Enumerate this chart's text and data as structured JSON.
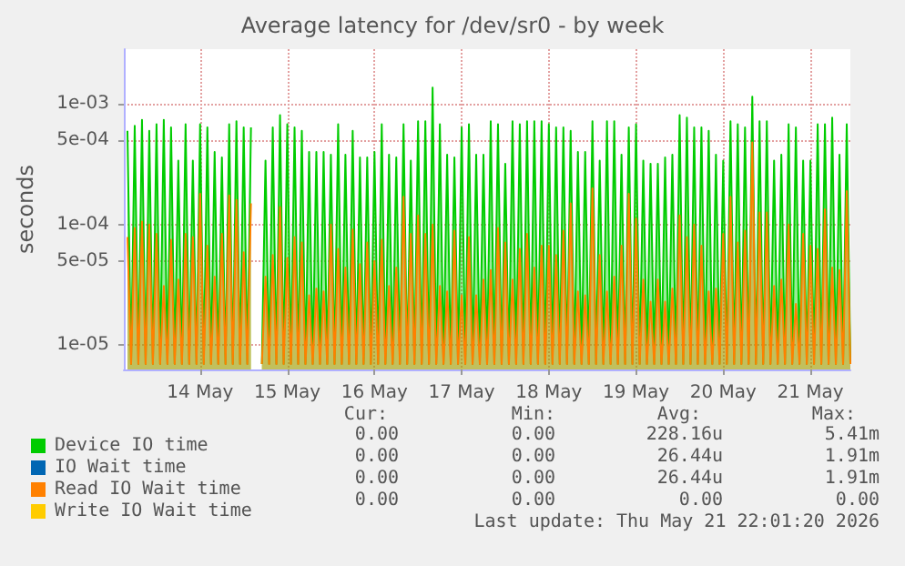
{
  "chart_data": {
    "type": "area",
    "title": "Average latency for /dev/sr0 - by week",
    "ylabel": "seconds",
    "x": [
      "2026-05-13T16:00",
      "2026-05-13T17:00",
      "2026-05-13T18:00",
      "2026-05-13T19:00",
      "2026-05-13T20:00",
      "2026-05-13T21:00",
      "2026-05-13T22:00",
      "2026-05-13T23:00",
      "2026-05-14T00:00",
      "2026-05-14T01:00",
      "2026-05-14T02:00",
      "2026-05-14T03:00",
      "2026-05-14T04:00",
      "2026-05-14T05:00",
      "2026-05-14T06:00",
      "2026-05-14T07:00",
      "2026-05-14T08:00",
      "2026-05-14T09:00",
      "2026-05-14T10:00",
      "2026-05-14T11:00",
      "2026-05-14T12:00",
      "2026-05-14T13:00",
      "2026-05-14T14:00",
      "2026-05-14T15:00",
      "2026-05-14T16:00",
      "2026-05-14T17:00",
      "2026-05-14T18:00",
      "2026-05-14T19:00",
      "2026-05-14T20:00",
      "2026-05-14T21:00",
      "2026-05-14T22:00",
      "2026-05-14T23:00",
      "2026-05-15T00:00",
      "2026-05-15T01:00",
      "2026-05-15T02:00",
      "2026-05-15T03:00",
      "2026-05-15T04:00",
      "2026-05-15T05:00",
      "2026-05-15T06:00",
      "2026-05-15T07:00",
      "2026-05-15T08:00",
      "2026-05-15T09:00",
      "2026-05-15T10:00",
      "2026-05-15T11:00",
      "2026-05-15T12:00",
      "2026-05-15T13:00",
      "2026-05-15T14:00",
      "2026-05-15T15:00",
      "2026-05-15T16:00",
      "2026-05-15T17:00",
      "2026-05-15T18:00",
      "2026-05-15T19:00",
      "2026-05-15T20:00",
      "2026-05-15T21:00",
      "2026-05-15T22:00",
      "2026-05-15T23:00",
      "2026-05-16T00:00",
      "2026-05-16T01:00",
      "2026-05-16T02:00",
      "2026-05-16T03:00",
      "2026-05-16T04:00",
      "2026-05-16T05:00",
      "2026-05-16T06:00",
      "2026-05-16T07:00",
      "2026-05-16T08:00",
      "2026-05-16T09:00",
      "2026-05-16T10:00",
      "2026-05-16T11:00",
      "2026-05-16T12:00",
      "2026-05-16T13:00",
      "2026-05-16T14:00",
      "2026-05-16T15:00",
      "2026-05-16T16:00",
      "2026-05-16T17:00",
      "2026-05-16T18:00",
      "2026-05-16T19:00",
      "2026-05-16T20:00",
      "2026-05-16T21:00",
      "2026-05-16T22:00",
      "2026-05-16T23:00",
      "2026-05-17T00:00",
      "2026-05-17T01:00",
      "2026-05-17T02:00",
      "2026-05-17T03:00",
      "2026-05-17T04:00",
      "2026-05-17T05:00",
      "2026-05-17T06:00",
      "2026-05-17T07:00",
      "2026-05-17T08:00",
      "2026-05-17T09:00",
      "2026-05-17T10:00",
      "2026-05-17T11:00",
      "2026-05-17T12:00",
      "2026-05-17T13:00",
      "2026-05-17T14:00",
      "2026-05-17T15:00",
      "2026-05-17T16:00",
      "2026-05-17T17:00",
      "2026-05-17T18:00",
      "2026-05-17T19:00",
      "2026-05-17T20:00",
      "2026-05-17T21:00",
      "2026-05-17T22:00",
      "2026-05-17T23:00",
      "2026-05-18T00:00",
      "2026-05-18T01:00",
      "2026-05-18T02:00",
      "2026-05-18T03:00",
      "2026-05-18T04:00",
      "2026-05-18T05:00",
      "2026-05-18T06:00",
      "2026-05-18T07:00",
      "2026-05-18T08:00",
      "2026-05-18T09:00",
      "2026-05-18T10:00",
      "2026-05-18T11:00",
      "2026-05-18T12:00",
      "2026-05-18T13:00",
      "2026-05-18T14:00",
      "2026-05-18T15:00",
      "2026-05-18T16:00",
      "2026-05-18T17:00",
      "2026-05-18T18:00",
      "2026-05-18T19:00",
      "2026-05-18T20:00",
      "2026-05-18T21:00",
      "2026-05-18T22:00",
      "2026-05-18T23:00",
      "2026-05-19T00:00",
      "2026-05-19T01:00",
      "2026-05-19T02:00",
      "2026-05-19T03:00",
      "2026-05-19T04:00",
      "2026-05-19T05:00",
      "2026-05-19T06:00",
      "2026-05-19T07:00",
      "2026-05-19T08:00",
      "2026-05-19T09:00",
      "2026-05-19T10:00",
      "2026-05-19T11:00",
      "2026-05-19T12:00",
      "2026-05-19T13:00",
      "2026-05-19T14:00",
      "2026-05-19T15:00",
      "2026-05-19T16:00",
      "2026-05-19T17:00",
      "2026-05-19T18:00",
      "2026-05-19T19:00",
      "2026-05-19T20:00",
      "2026-05-19T21:00",
      "2026-05-19T22:00",
      "2026-05-19T23:00",
      "2026-05-20T00:00",
      "2026-05-20T01:00",
      "2026-05-20T02:00",
      "2026-05-20T03:00",
      "2026-05-20T04:00",
      "2026-05-20T05:00",
      "2026-05-20T06:00",
      "2026-05-20T07:00",
      "2026-05-20T08:00",
      "2026-05-20T09:00",
      "2026-05-20T10:00",
      "2026-05-20T11:00",
      "2026-05-20T12:00",
      "2026-05-20T13:00",
      "2026-05-20T14:00",
      "2026-05-20T15:00",
      "2026-05-20T16:00",
      "2026-05-20T17:00",
      "2026-05-20T18:00",
      "2026-05-20T19:00",
      "2026-05-20T20:00",
      "2026-05-20T21:00",
      "2026-05-20T22:00",
      "2026-05-20T23:00",
      "2026-05-21T00:00",
      "2026-05-21T01:00",
      "2026-05-21T02:00",
      "2026-05-21T03:00",
      "2026-05-21T04:00",
      "2026-05-21T05:00",
      "2026-05-21T06:00",
      "2026-05-21T07:00",
      "2026-05-21T08:00",
      "2026-05-21T09:00",
      "2026-05-21T10:00",
      "2026-05-21T11:00",
      "2026-05-21T12:00",
      "2026-05-21T13:00",
      "2026-05-21T14:00",
      "2026-05-21T15:00",
      "2026-05-21T16:00",
      "2026-05-21T17:00",
      "2026-05-21T18:00",
      "2026-05-21T19:00",
      "2026-05-21T20:00",
      "2026-05-21T21:00",
      "2026-05-21T22:00",
      "2026-05-21T23:00"
    ],
    "series": [
      {
        "name": "Device IO time",
        "color": "#00cc00",
        "values": [
          0.0006,
          7e-06,
          0.00066,
          7e-06,
          0.00074,
          7e-06,
          0.0006,
          7e-06,
          0.00068,
          7e-06,
          0.00074,
          7e-06,
          0.00064,
          7e-06,
          0.00034,
          7e-06,
          0.00068,
          7e-06,
          0.00034,
          7e-06,
          0.00068,
          7e-06,
          0.00064,
          7e-06,
          0.0004,
          7e-06,
          0.00036,
          7e-06,
          0.00068,
          7e-06,
          0.00072,
          7e-06,
          0.00064,
          7e-06,
          0.00064,
          null,
          null,
          7e-06,
          0.00034,
          7e-06,
          0.00064,
          7e-06,
          0.00081,
          7e-06,
          0.00068,
          7e-06,
          0.00064,
          7e-06,
          0.0006,
          7e-06,
          0.0004,
          7e-06,
          0.0004,
          7e-06,
          0.0004,
          7e-06,
          0.00038,
          7e-06,
          0.00068,
          7e-06,
          0.00038,
          7e-06,
          0.0006,
          7e-06,
          0.00036,
          7e-06,
          0.00036,
          7e-06,
          0.0004,
          7e-06,
          0.00068,
          7e-06,
          0.00038,
          7e-06,
          0.00036,
          7e-06,
          0.00068,
          7e-06,
          0.00034,
          7e-06,
          0.00072,
          7e-06,
          0.00072,
          7e-06,
          0.00137,
          7e-06,
          0.00068,
          7e-06,
          0.00038,
          7e-06,
          0.00036,
          7e-06,
          0.00064,
          7e-06,
          0.00068,
          7e-06,
          0.00038,
          7e-06,
          0.00038,
          7e-06,
          0.00072,
          7e-06,
          0.00068,
          7e-06,
          0.00032,
          7e-06,
          0.00072,
          7e-06,
          0.00068,
          7e-06,
          0.00072,
          7e-06,
          0.00072,
          7e-06,
          0.00072,
          7e-06,
          0.00068,
          7e-06,
          0.00064,
          7e-06,
          0.00064,
          7e-06,
          0.0006,
          7e-06,
          0.0004,
          7e-06,
          0.0004,
          7e-06,
          0.00072,
          7e-06,
          0.00034,
          7e-06,
          0.00072,
          7e-06,
          0.00072,
          7e-06,
          0.00038,
          7e-06,
          0.00064,
          7e-06,
          0.00068,
          7e-06,
          0.00034,
          7e-06,
          0.00032,
          7e-06,
          0.00032,
          7e-06,
          0.00036,
          7e-06,
          0.00038,
          7e-06,
          0.00081,
          7e-06,
          0.00077,
          7e-06,
          0.00064,
          7e-06,
          0.00064,
          7e-06,
          0.0006,
          7e-06,
          0.00038,
          7e-06,
          0.00034,
          7e-06,
          0.00072,
          7e-06,
          0.00068,
          7e-06,
          0.00064,
          7e-06,
          0.00115,
          7e-06,
          0.00072,
          7e-06,
          0.00072,
          7e-06,
          0.00034,
          7e-06,
          0.00038,
          7e-06,
          0.00068,
          7e-06,
          0.00064,
          7e-06,
          0.00034,
          7e-06,
          0.00034,
          7e-06,
          0.00068,
          7e-06,
          0.00068,
          7e-06,
          0.00077,
          7e-06,
          0.00038,
          7e-06,
          0.00068,
          7e-06
        ]
      },
      {
        "name": "IO Wait time",
        "color": "#0066b3",
        "values": [
          null,
          null,
          null,
          null,
          null,
          null,
          null,
          null,
          null,
          null,
          null,
          null,
          null,
          null,
          null,
          null,
          null,
          null,
          null,
          null,
          null,
          null,
          null,
          null,
          null,
          null,
          null,
          null,
          null,
          null,
          null,
          null,
          null,
          null,
          null,
          null,
          null,
          null,
          null,
          null,
          null,
          null,
          null,
          null,
          null,
          null,
          null,
          null,
          null,
          null,
          null,
          null,
          null,
          null,
          null,
          null,
          null,
          null,
          null,
          null,
          null,
          null,
          null,
          null,
          null,
          null,
          null,
          null,
          null,
          null,
          null,
          null,
          null,
          null,
          null,
          null,
          null,
          null,
          null,
          null,
          null,
          null,
          null,
          null,
          null,
          null,
          null,
          null,
          null,
          null,
          null,
          null,
          null,
          null,
          null,
          null,
          null,
          null,
          null,
          null,
          null,
          null,
          null,
          null,
          null,
          null,
          null,
          null,
          null,
          null,
          null,
          null,
          null,
          null,
          null,
          null,
          null,
          null,
          null,
          null,
          null,
          null,
          null,
          null,
          null,
          null,
          null,
          null,
          null,
          null,
          null,
          null,
          null,
          null,
          null,
          null,
          null,
          null,
          null,
          null,
          null,
          null,
          null,
          null,
          null,
          null,
          null,
          null,
          null,
          null,
          null,
          null,
          null,
          null,
          null,
          null,
          null,
          null,
          null,
          null,
          null,
          null,
          null,
          null,
          null,
          null,
          null,
          null,
          null,
          null,
          null,
          null,
          null,
          null,
          null,
          null,
          null,
          null,
          null,
          null,
          null,
          null,
          null,
          null,
          null,
          null,
          null,
          null,
          null,
          null,
          null,
          null,
          null,
          null,
          null,
          null,
          null,
          null,
          null,
          null
        ]
      },
      {
        "name": "Read IO Wait time",
        "color": "#ff8000",
        "values": [
          7.9e-05,
          7e-06,
          9.4e-05,
          7e-06,
          0.000106,
          7e-06,
          0.0001,
          7e-06,
          8.4e-05,
          7e-06,
          3.1e-05,
          7e-06,
          7.5e-05,
          7e-06,
          3.5e-05,
          7e-06,
          8.4e-05,
          7e-06,
          7.9e-05,
          7e-06,
          0.00018,
          7e-06,
          6.7e-05,
          7e-06,
          3.7e-05,
          7e-06,
          8.4e-05,
          7e-06,
          0.000175,
          7e-06,
          0.00016,
          7e-06,
          5.9e-05,
          7e-06,
          0.00015,
          null,
          null,
          7e-06,
          3.7e-05,
          7e-06,
          5.6e-05,
          7e-06,
          0.00014,
          7e-06,
          5.3e-05,
          7e-06,
          7.9e-05,
          7e-06,
          7.1e-05,
          7e-06,
          2.6e-05,
          7e-06,
          2.95e-05,
          7e-06,
          2.8e-05,
          7e-06,
          0.0001,
          7e-06,
          6.3e-05,
          7e-06,
          4.4e-05,
          7e-06,
          9.1e-05,
          7e-06,
          4.7e-05,
          7e-06,
          7.1e-05,
          7e-06,
          5e-05,
          7e-06,
          7.5e-05,
          7e-06,
          3.1e-05,
          7e-06,
          4.4e-05,
          7e-06,
          0.00017,
          7e-06,
          8.4e-05,
          7e-06,
          0.000119,
          7e-06,
          8.4e-05,
          7e-06,
          0.0001,
          7e-06,
          3.1e-05,
          7e-06,
          2.8e-05,
          7e-06,
          8.9e-05,
          7e-06,
          2.6e-05,
          7e-06,
          7.9e-05,
          7e-06,
          2.6e-05,
          7e-06,
          3.5e-05,
          7e-06,
          4.2e-05,
          7e-06,
          9.4e-05,
          7e-06,
          7.1e-05,
          7e-06,
          3.5e-05,
          7e-06,
          6.3e-05,
          7e-06,
          8.4e-05,
          7e-06,
          4.4e-05,
          7e-06,
          6.7e-05,
          7e-06,
          6.7e-05,
          7e-06,
          5.6e-05,
          7e-06,
          8.9e-05,
          7e-06,
          0.00015,
          7e-06,
          2.8e-05,
          7e-06,
          2.6e-05,
          7e-06,
          0.0002,
          7e-06,
          5.6e-05,
          7e-06,
          2.8e-05,
          7e-06,
          3.7e-05,
          7e-06,
          6.7e-05,
          7e-06,
          0.00018,
          7e-06,
          0.000112,
          7e-06,
          3.5e-05,
          7e-06,
          2.3e-05,
          7e-06,
          3.5e-05,
          7e-06,
          2.3e-05,
          7e-06,
          2.95e-05,
          7e-06,
          0.000119,
          7e-06,
          7.9e-05,
          7e-06,
          0.0001,
          7e-06,
          6.7e-05,
          7e-06,
          2.8e-05,
          7e-06,
          2.95e-05,
          7e-06,
          8.4e-05,
          7e-06,
          0.00017,
          7e-06,
          7.1e-05,
          7e-06,
          8.9e-05,
          7e-06,
          0.00048,
          7e-06,
          0.000126,
          7e-06,
          0.000126,
          7e-06,
          3.1e-05,
          7e-06,
          3.5e-05,
          7e-06,
          0.0001,
          7e-06,
          2.2e-05,
          7e-06,
          8.4e-05,
          7e-06,
          6.7e-05,
          7e-06,
          6.3e-05,
          7e-06,
          0.000134,
          7e-06,
          4.4e-05,
          7e-06,
          4.2e-05,
          7e-06,
          0.00019,
          7e-06
        ]
      },
      {
        "name": "Write IO Wait time",
        "color": "#ffcc00",
        "values": [
          null,
          null,
          null,
          null,
          null,
          null,
          null,
          null,
          null,
          null,
          null,
          null,
          null,
          null,
          null,
          null,
          null,
          null,
          null,
          null,
          null,
          null,
          null,
          null,
          null,
          null,
          null,
          null,
          null,
          null,
          null,
          null,
          null,
          null,
          null,
          null,
          null,
          null,
          null,
          null,
          null,
          null,
          null,
          null,
          null,
          null,
          null,
          null,
          null,
          null,
          null,
          null,
          null,
          null,
          null,
          null,
          null,
          null,
          null,
          null,
          null,
          null,
          null,
          null,
          null,
          null,
          null,
          null,
          null,
          null,
          null,
          null,
          null,
          null,
          null,
          null,
          null,
          null,
          null,
          null,
          null,
          null,
          null,
          null,
          null,
          null,
          null,
          null,
          null,
          null,
          null,
          null,
          null,
          null,
          null,
          null,
          null,
          null,
          null,
          null,
          null,
          null,
          null,
          null,
          null,
          null,
          null,
          null,
          null,
          null,
          null,
          null,
          null,
          null,
          null,
          null,
          null,
          null,
          null,
          null,
          null,
          null,
          null,
          null,
          null,
          null,
          null,
          null,
          null,
          null,
          null,
          null,
          null,
          null,
          null,
          null,
          null,
          null,
          null,
          null,
          null,
          null,
          null,
          null,
          null,
          null,
          null,
          null,
          null,
          null,
          null,
          null,
          null,
          null,
          null,
          null,
          null,
          null,
          null,
          null,
          null,
          null,
          null,
          null,
          null,
          null,
          null,
          null,
          null,
          null,
          null,
          null,
          null,
          null,
          null,
          null,
          null,
          null,
          null,
          null,
          null,
          null,
          null,
          null,
          null,
          null,
          null,
          null,
          null,
          null,
          null,
          null,
          null,
          null,
          null,
          null,
          null,
          null,
          null,
          null
        ]
      }
    ],
    "log": "y",
    "xlim": [
      "2026-05-13T15:00",
      "2026-05-21T23:00"
    ],
    "xticks": [
      {
        "value": "2026-05-14T12:00",
        "label": "14 May"
      },
      {
        "value": "2026-05-15T12:00",
        "label": "15 May"
      },
      {
        "value": "2026-05-16T12:00",
        "label": "16 May"
      },
      {
        "value": "2026-05-17T12:00",
        "label": "17 May"
      },
      {
        "value": "2026-05-18T12:00",
        "label": "18 May"
      },
      {
        "value": "2026-05-19T12:00",
        "label": "19 May"
      },
      {
        "value": "2026-05-20T12:00",
        "label": "20 May"
      },
      {
        "value": "2026-05-21T12:00",
        "label": "21 May"
      }
    ],
    "ylim": [
      6.3e-06,
      0.00285
    ],
    "yticks": [
      {
        "value": 1e-05,
        "label": "1e-05"
      },
      {
        "value": 5e-05,
        "label": "5e-05"
      },
      {
        "value": 0.0001,
        "label": "1e-04"
      },
      {
        "value": 0.0005,
        "label": "5e-04"
      },
      {
        "value": 0.001,
        "label": "1e-03"
      }
    ],
    "grid": true,
    "legend": "bottom",
    "annotations": [
      "Cur:",
      "Min:",
      "Avg:",
      "Max:",
      "0.00",
      "0.00",
      "228.16u",
      "5.41m",
      "0.00",
      "0.00",
      "26.44u",
      "1.91m",
      "0.00",
      "0.00",
      "26.44u",
      "1.91m",
      "0.00",
      "0.00",
      "0.00",
      "0.00",
      "Last update: Thu May 21 22:01:20 2026"
    ]
  }
}
